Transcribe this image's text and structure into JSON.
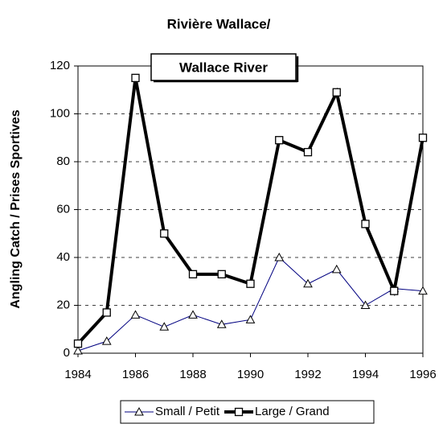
{
  "chart_data": {
    "type": "line",
    "title": "Rivière Wallace/",
    "subtitle": "Wallace River",
    "y_label": "Angling Catch / Prises Sportives",
    "x": [
      1984,
      1985,
      1986,
      1987,
      1988,
      1989,
      1990,
      1991,
      1992,
      1993,
      1994,
      1995,
      1996
    ],
    "series": [
      {
        "name": "Small / Petit",
        "color": "#000080",
        "marker": "triangle",
        "values": [
          1,
          5,
          16,
          11,
          16,
          12,
          14,
          40,
          29,
          35,
          20,
          27,
          26
        ]
      },
      {
        "name": "Large / Grand",
        "color": "#000000",
        "marker": "square",
        "values": [
          4,
          17,
          115,
          50,
          33,
          33,
          29,
          89,
          84,
          109,
          54,
          26,
          90
        ]
      }
    ],
    "xlim": [
      1984,
      1996
    ],
    "xticks": [
      1984,
      1986,
      1988,
      1990,
      1992,
      1994,
      1996
    ],
    "ylim": [
      0,
      120
    ],
    "yticks": [
      0,
      20,
      40,
      60,
      80,
      100,
      120
    ],
    "grid": true,
    "legend": "bottom"
  }
}
